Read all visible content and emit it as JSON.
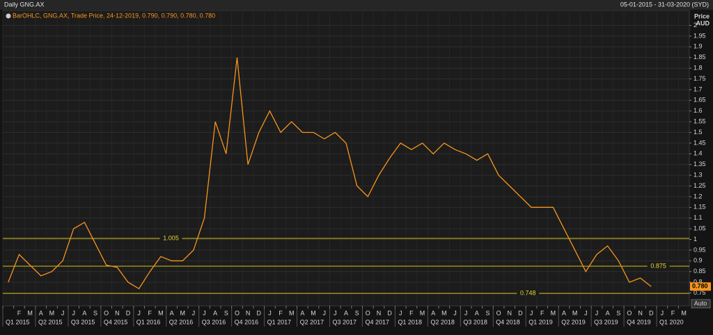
{
  "chart_data": {
    "type": "line",
    "title": "Daily GNG.AX",
    "subtitle": "05-01-2015 - 31-03-2020 (SYD)",
    "y_axis_label": "Price",
    "y_axis_unit": "AUD",
    "auto_button": "Auto",
    "grid": true,
    "categories": [
      null,
      "F",
      "M",
      "A",
      "M",
      "J",
      "J",
      "A",
      "S",
      "O",
      "N",
      "D",
      "J",
      "F",
      "M",
      "A",
      "M",
      "J",
      "J",
      "A",
      "S",
      "O",
      "N",
      "D",
      "J",
      "F",
      "M",
      "A",
      "M",
      "J",
      "J",
      "A",
      "S",
      "O",
      "N",
      "D",
      "J",
      "F",
      "M",
      "A",
      "M",
      "J",
      "J",
      "A",
      "S",
      "O",
      "N",
      "D",
      "J",
      "F",
      "M",
      "A",
      "M",
      "J",
      "J",
      "A",
      "S",
      "O",
      "N",
      "D",
      "J",
      "F",
      "M"
    ],
    "quarters": [
      "Q1 2015",
      "Q2 2015",
      "Q3 2015",
      "Q4 2015",
      "Q1 2016",
      "Q2 2016",
      "Q3 2016",
      "Q4 2016",
      "Q1 2017",
      "Q2 2017",
      "Q3 2017",
      "Q4 2017",
      "Q1 2018",
      "Q2 2018",
      "Q3 2018",
      "Q4 2018",
      "Q1 2019",
      "Q2 2019",
      "Q3 2019",
      "Q4 2019",
      "Q1 2020"
    ],
    "series": [
      {
        "name": "BarOHLC, GNG.AX, Trade Price, 24-12-2019, 0.790, 0.790, 0.780, 0.780",
        "color": "#f7941d",
        "values": [
          0.8,
          0.93,
          0.88,
          0.83,
          0.85,
          0.9,
          1.05,
          1.08,
          0.98,
          0.88,
          0.87,
          0.8,
          0.77,
          0.85,
          0.92,
          0.9,
          0.9,
          0.95,
          1.1,
          1.55,
          1.4,
          1.85,
          1.35,
          1.5,
          1.6,
          1.5,
          1.55,
          1.5,
          1.5,
          1.47,
          1.5,
          1.45,
          1.25,
          1.2,
          1.3,
          1.38,
          1.45,
          1.42,
          1.45,
          1.4,
          1.45,
          1.42,
          1.4,
          1.37,
          1.4,
          1.3,
          1.25,
          1.2,
          1.15,
          1.15,
          1.15,
          1.05,
          0.95,
          0.85,
          0.93,
          0.97,
          0.9,
          0.8,
          0.82,
          0.78,
          null,
          null,
          null
        ]
      }
    ],
    "reference_lines": [
      1.005,
      0.875,
      0.748
    ],
    "last_price": {
      "value": 0.78,
      "label": "0.780"
    },
    "ylim": [
      0.69,
      2.07
    ],
    "yticks": [
      0.75,
      0.8,
      0.85,
      0.9,
      0.95,
      1,
      1.05,
      1.1,
      1.15,
      1.2,
      1.25,
      1.3,
      1.35,
      1.4,
      1.45,
      1.5,
      1.55,
      1.6,
      1.65,
      1.7,
      1.75,
      1.8,
      1.85,
      1.9,
      1.95,
      2
    ]
  }
}
